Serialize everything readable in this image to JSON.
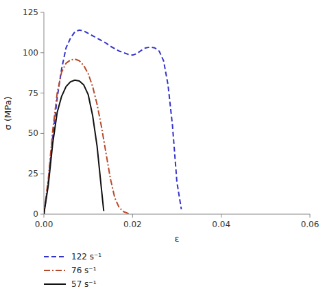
{
  "chart_data": {
    "type": "line",
    "xlabel": "ε",
    "ylabel": "σ (MPa)",
    "xlim": [
      0.0,
      0.06
    ],
    "ylim": [
      0,
      125
    ],
    "xticks": [
      {
        "value": 0.0,
        "label": "0.00"
      },
      0.02,
      0.04,
      0.06
    ],
    "yticks": [
      0,
      25,
      50,
      75,
      100,
      125
    ],
    "grid": false,
    "legend": "below",
    "series": [
      {
        "name": "122 s⁻¹",
        "color": "#3333cc",
        "line_style": "dashed",
        "x": [
          0.0,
          0.001,
          0.002,
          0.003,
          0.004,
          0.005,
          0.006,
          0.007,
          0.008,
          0.009,
          0.01,
          0.011,
          0.012,
          0.013,
          0.014,
          0.015,
          0.016,
          0.017,
          0.018,
          0.019,
          0.02,
          0.021,
          0.022,
          0.023,
          0.024,
          0.025,
          0.026,
          0.027,
          0.028,
          0.029,
          0.03,
          0.031
        ],
        "values": [
          0.0,
          20.0,
          48.0,
          72.0,
          90.0,
          103.0,
          109.0,
          113.0,
          114.0,
          113.5,
          112.0,
          110.5,
          109.0,
          107.5,
          106.0,
          104.0,
          102.5,
          101.0,
          100.0,
          99.0,
          98.5,
          99.5,
          101.5,
          103.0,
          103.5,
          103.0,
          101.0,
          95.0,
          80.0,
          55.0,
          20.0,
          3.0
        ]
      },
      {
        "name": "76 s⁻¹",
        "color": "#b84a2a",
        "line_style": "dashdot",
        "x": [
          0.0,
          0.001,
          0.002,
          0.003,
          0.004,
          0.005,
          0.006,
          0.007,
          0.008,
          0.009,
          0.01,
          0.011,
          0.012,
          0.013,
          0.014,
          0.015,
          0.016,
          0.017,
          0.018,
          0.019,
          0.0195
        ],
        "values": [
          0.0,
          22.0,
          52.0,
          75.0,
          88.0,
          93.5,
          95.5,
          96.0,
          95.0,
          92.0,
          87.0,
          79.0,
          68.0,
          54.0,
          38.0,
          22.0,
          10.0,
          4.0,
          1.5,
          0.5,
          0.0
        ]
      },
      {
        "name": "57 s⁻¹",
        "color": "#111111",
        "line_style": "solid",
        "x": [
          0.0,
          0.001,
          0.002,
          0.003,
          0.004,
          0.005,
          0.006,
          0.007,
          0.008,
          0.009,
          0.01,
          0.011,
          0.012,
          0.013,
          0.0135
        ],
        "values": [
          0.0,
          18.0,
          44.0,
          63.0,
          73.0,
          79.0,
          82.0,
          83.0,
          82.5,
          80.0,
          74.0,
          61.0,
          42.0,
          15.0,
          2.0
        ]
      }
    ]
  }
}
